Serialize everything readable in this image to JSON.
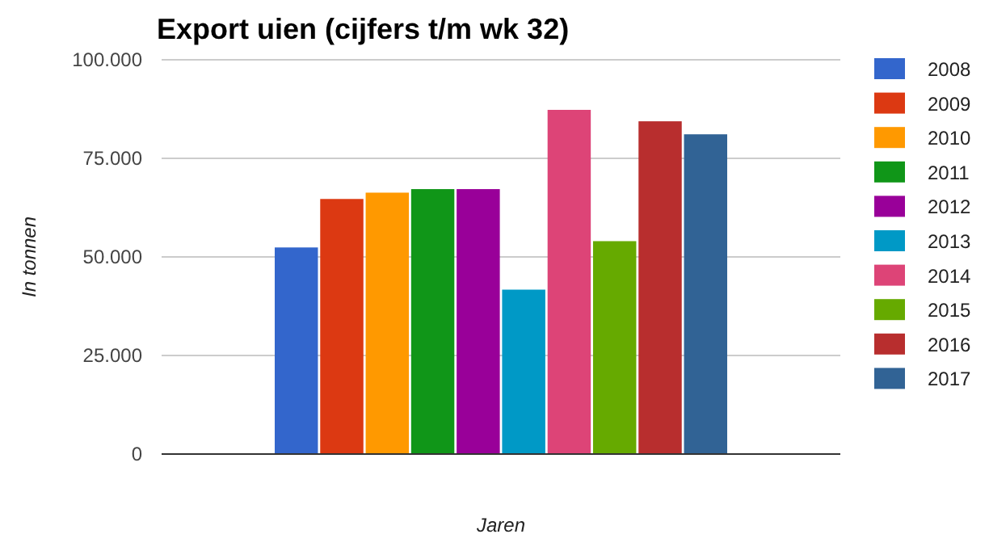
{
  "chart_data": {
    "type": "bar",
    "title": "Export uien (cijfers t/m wk 32)",
    "xlabel": "Jaren",
    "ylabel": "In tonnen",
    "categories": [
      null
    ],
    "series": [
      {
        "name": "2008",
        "color": "#3366cc",
        "values": [
          52400
        ]
      },
      {
        "name": "2009",
        "color": "#dc3912",
        "values": [
          64700
        ]
      },
      {
        "name": "2010",
        "color": "#ff9900",
        "values": [
          66300
        ]
      },
      {
        "name": "2011",
        "color": "#109618",
        "values": [
          67200
        ]
      },
      {
        "name": "2012",
        "color": "#990099",
        "values": [
          67200
        ]
      },
      {
        "name": "2013",
        "color": "#0099c6",
        "values": [
          41700
        ]
      },
      {
        "name": "2014",
        "color": "#dd4477",
        "values": [
          87300
        ]
      },
      {
        "name": "2015",
        "color": "#66aa00",
        "values": [
          54000
        ]
      },
      {
        "name": "2016",
        "color": "#b82e2e",
        "values": [
          84400
        ]
      },
      {
        "name": "2017",
        "color": "#316395",
        "values": [
          81100
        ]
      }
    ],
    "ylim": [
      0,
      100000
    ],
    "yticks": [
      {
        "value": 0,
        "label": "0"
      },
      {
        "value": 25000,
        "label": "25.000"
      },
      {
        "value": 50000,
        "label": "50.000"
      },
      {
        "value": 75000,
        "label": "75.000"
      },
      {
        "value": 100000,
        "label": "100.000"
      }
    ],
    "grid": "y",
    "legend": "right"
  }
}
